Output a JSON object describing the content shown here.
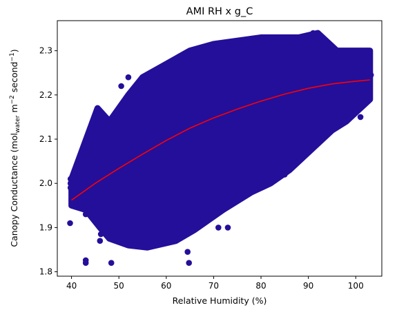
{
  "chart_data": {
    "type": "scatter",
    "title": "AMI RH x g_C",
    "xlabel": "Relative Humidity (%)",
    "ylabel_parts": [
      "Canopy Conductance (mol",
      "water",
      " m",
      "−2",
      " second",
      "−1",
      ")"
    ],
    "xlim": [
      37,
      105.5
    ],
    "ylim": [
      1.79,
      2.368
    ],
    "x_ticks": [
      40,
      50,
      60,
      70,
      80,
      90,
      100
    ],
    "y_ticks": [
      1.8,
      1.9,
      2.0,
      2.1,
      2.2,
      2.3
    ],
    "x_tick_labels": [
      "40",
      "50",
      "60",
      "70",
      "80",
      "90",
      "100"
    ],
    "y_tick_labels": [
      "1.8",
      "1.9",
      "2.0",
      "2.1",
      "2.2",
      "2.3"
    ],
    "grid": false,
    "colors": {
      "points": "#240f9a",
      "fit": "#ff0000"
    },
    "scatter_cloud": {
      "upper": [
        [
          40,
          2.01
        ],
        [
          45.5,
          2.17
        ],
        [
          48,
          2.14
        ],
        [
          52,
          2.2
        ],
        [
          55,
          2.24
        ],
        [
          60,
          2.27
        ],
        [
          65,
          2.3
        ],
        [
          70,
          2.315
        ],
        [
          80,
          2.33
        ],
        [
          88,
          2.33
        ],
        [
          92,
          2.34
        ],
        [
          96,
          2.3
        ],
        [
          103,
          2.3
        ],
        [
          103,
          2.245
        ]
      ],
      "lower": [
        [
          103,
          2.19
        ],
        [
          98,
          2.14
        ],
        [
          95,
          2.12
        ],
        [
          90,
          2.07
        ],
        [
          86,
          2.03
        ],
        [
          82,
          2.0
        ],
        [
          78,
          1.98
        ],
        [
          72,
          1.94
        ],
        [
          66,
          1.895
        ],
        [
          62,
          1.87
        ],
        [
          56,
          1.855
        ],
        [
          52,
          1.86
        ],
        [
          48,
          1.875
        ],
        [
          46,
          1.9
        ],
        [
          43,
          1.94
        ],
        [
          40,
          1.95
        ]
      ]
    },
    "outliers": [
      [
        39.8,
        2.0
      ],
      [
        39.8,
        2.01
      ],
      [
        39.8,
        1.99
      ],
      [
        39.7,
        1.91
      ],
      [
        43,
        1.82
      ],
      [
        43,
        1.826
      ],
      [
        48.4,
        1.82
      ],
      [
        64.8,
        1.82
      ],
      [
        64.5,
        1.845
      ],
      [
        45.5,
        2.165
      ],
      [
        45.5,
        2.155
      ],
      [
        45.5,
        2.12
      ],
      [
        45.2,
        2.03
      ],
      [
        46,
        2.1
      ],
      [
        47,
        2.02
      ],
      [
        47.5,
        1.96
      ],
      [
        46,
        1.87
      ],
      [
        46.2,
        1.885
      ],
      [
        50.5,
        2.22
      ],
      [
        52,
        2.24
      ],
      [
        68,
        2.27
      ],
      [
        72,
        2.3
      ],
      [
        91,
        2.34
      ],
      [
        95,
        2.305
      ],
      [
        102.5,
        2.3
      ],
      [
        103.2,
        2.245
      ],
      [
        103,
        2.19
      ],
      [
        101,
        2.15
      ],
      [
        97,
        2.18
      ],
      [
        94,
        2.14
      ],
      [
        92,
        2.17
      ],
      [
        90,
        2.07
      ],
      [
        85,
        2.02
      ],
      [
        80,
        2.03
      ],
      [
        78,
        1.98
      ],
      [
        73,
        1.9
      ],
      [
        71,
        1.9
      ],
      [
        69,
        1.95
      ],
      [
        65.5,
        1.91
      ],
      [
        60,
        1.88
      ],
      [
        57,
        1.87
      ],
      [
        55,
        1.865
      ],
      [
        50,
        1.88
      ],
      [
        53,
        1.9
      ],
      [
        41,
        1.95
      ],
      [
        43,
        1.93
      ],
      [
        42,
        1.96
      ],
      [
        44,
        1.97
      ]
    ],
    "fit_line": {
      "x": [
        40,
        45,
        50,
        55,
        60,
        65,
        70,
        75,
        80,
        85,
        90,
        95,
        100,
        103
      ],
      "y": [
        1.962,
        2.0,
        2.034,
        2.066,
        2.097,
        2.125,
        2.148,
        2.168,
        2.186,
        2.202,
        2.215,
        2.225,
        2.231,
        2.234
      ]
    }
  }
}
